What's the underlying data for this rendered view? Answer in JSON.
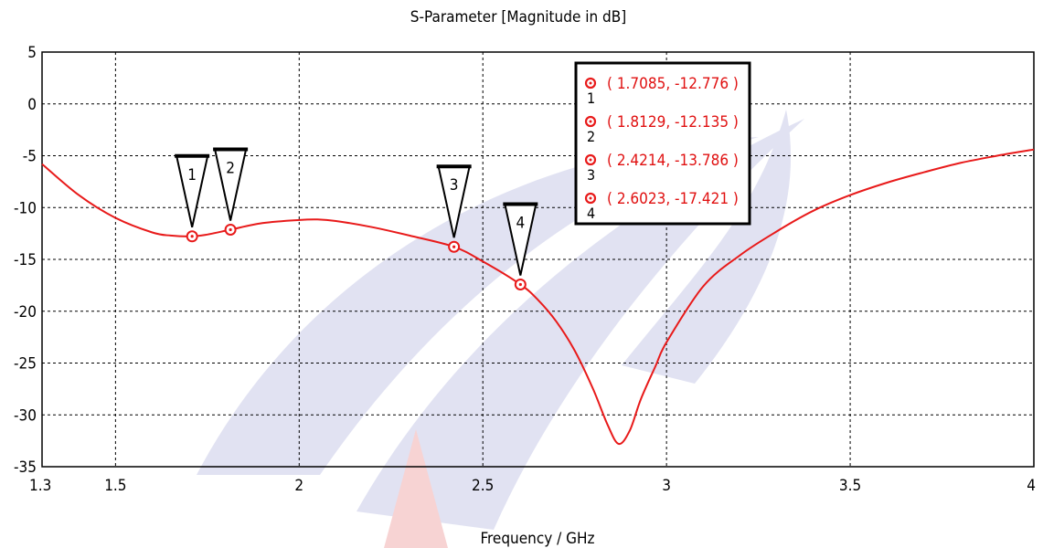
{
  "chart_data": {
    "type": "line",
    "title": "S-Parameter [Magnitude in dB]",
    "xlabel": "Frequency / GHz",
    "ylabel": "",
    "xlim": [
      1.3,
      4.0
    ],
    "ylim": [
      -35,
      5
    ],
    "x_ticks": [
      "1.3",
      "1.5",
      "2",
      "2.5",
      "3",
      "3.5",
      "4"
    ],
    "y_ticks": [
      "5",
      "0",
      "-5",
      "-10",
      "-15",
      "-20",
      "-25",
      "-30",
      "-35"
    ],
    "grid": true,
    "line_color": "#e81a1a",
    "series": [
      {
        "x": [
          1.3,
          1.4,
          1.5,
          1.6,
          1.65,
          1.7085,
          1.75,
          1.8129,
          1.9,
          2.0,
          2.05,
          2.1,
          2.2,
          2.3,
          2.4214,
          2.5,
          2.6023,
          2.65,
          2.7,
          2.75,
          2.8,
          2.84,
          2.87,
          2.9,
          2.93,
          2.97,
          3.0,
          3.1,
          3.2,
          3.3,
          3.4,
          3.5,
          3.6,
          3.7,
          3.8,
          3.9,
          4.0
        ],
        "values": [
          -5.8,
          -8.8,
          -11.0,
          -12.4,
          -12.7,
          -12.776,
          -12.6,
          -12.135,
          -11.5,
          -11.2,
          -11.15,
          -11.3,
          -11.9,
          -12.7,
          -13.786,
          -15.2,
          -17.421,
          -18.9,
          -21.0,
          -23.8,
          -27.5,
          -31.0,
          -32.8,
          -31.5,
          -28.5,
          -25.3,
          -23.0,
          -17.6,
          -14.6,
          -12.3,
          -10.3,
          -8.8,
          -7.6,
          -6.6,
          -5.7,
          -5.0,
          -4.4
        ]
      }
    ],
    "markers": [
      {
        "label": "1",
        "x": 1.7085,
        "y": -12.776,
        "legend": "( 1.7085, -12.776 )"
      },
      {
        "label": "2",
        "x": 1.8129,
        "y": -12.135,
        "legend": "( 1.8129, -12.135 )"
      },
      {
        "label": "3",
        "x": 2.4214,
        "y": -13.786,
        "legend": "( 2.4214, -13.786 )"
      },
      {
        "label": "4",
        "x": 2.6023,
        "y": -17.421,
        "legend": "( 2.6023, -17.421 )"
      }
    ],
    "legend_placement": "top-right"
  }
}
